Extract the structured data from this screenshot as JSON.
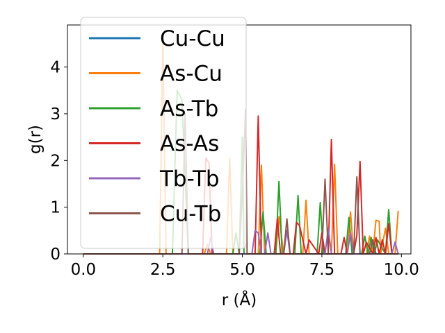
{
  "chart_data": {
    "type": "line",
    "title": "",
    "xlabel": "r (Å)",
    "ylabel": "g(r)",
    "xlim": [
      -0.5,
      10.3
    ],
    "ylim": [
      0,
      4.9
    ],
    "xticks": [
      0.0,
      2.5,
      5.0,
      7.5,
      10.0
    ],
    "xtick_labels": [
      "0.0",
      "2.5",
      "5.0",
      "7.5",
      "10.0"
    ],
    "yticks": [
      0,
      1,
      2,
      3,
      4
    ],
    "ytick_labels": [
      "0",
      "1",
      "2",
      "3",
      "4"
    ],
    "grid": false,
    "legend_position": "top-left",
    "series": [
      {
        "name": "Cu-Cu",
        "color": "#1f77b4",
        "x": [
          0,
          2.35,
          2.45,
          2.55,
          9.9
        ],
        "y": [
          0,
          0,
          0,
          0,
          0
        ]
      },
      {
        "name": "As-Cu",
        "color": "#ff7f0e",
        "x": [
          0,
          2.4,
          2.5,
          2.6,
          3.8,
          3.9,
          4.0,
          4.5,
          4.6,
          4.7,
          5.5,
          5.6,
          5.7,
          6.05,
          6.15,
          6.3,
          6.9,
          7.0,
          7.1,
          7.8,
          7.9,
          8.0,
          8.3,
          8.4,
          8.5,
          8.9,
          9.0,
          9.1,
          9.2,
          9.3,
          9.35,
          9.5,
          9.6,
          9.7,
          9.8,
          9.9
        ],
        "y": [
          0,
          0,
          4.6,
          0,
          0,
          0.2,
          0,
          0,
          2.05,
          0,
          0,
          1.9,
          0,
          0,
          0.8,
          0,
          0,
          1.15,
          0,
          0,
          1.92,
          0,
          0,
          0.9,
          0,
          0,
          0.38,
          0,
          0.72,
          0.7,
          0,
          0.55,
          0,
          0,
          0,
          0.92
        ]
      },
      {
        "name": "As-Tb",
        "color": "#2ca02c",
        "x": [
          0,
          2.8,
          2.95,
          3.1,
          3.3,
          4.7,
          4.8,
          4.9,
          5.0,
          5.05,
          5.55,
          5.65,
          5.75,
          6.05,
          6.15,
          6.25,
          6.65,
          6.75,
          6.85,
          7.35,
          7.45,
          7.55,
          8.25,
          8.35,
          8.45,
          8.75,
          8.85,
          8.95,
          9.05,
          9.15,
          9.25,
          9.5,
          9.6,
          9.7,
          9.9
        ],
        "y": [
          0,
          0,
          3.5,
          3.3,
          0,
          0,
          0.45,
          0,
          2.5,
          0,
          0,
          0.9,
          0,
          0,
          1.55,
          0,
          0,
          1.25,
          0,
          0,
          1.1,
          0,
          0,
          0.78,
          0,
          0,
          0.38,
          0,
          0.35,
          0,
          0.3,
          0,
          0.95,
          0,
          0
        ]
      },
      {
        "name": "As-As",
        "color": "#d62728",
        "x": [
          0,
          3.75,
          3.85,
          3.95,
          4.05,
          5.4,
          5.5,
          5.6,
          6.0,
          6.1,
          6.2,
          6.6,
          6.7,
          6.8,
          7.0,
          7.1,
          7.4,
          7.5,
          7.6,
          7.7,
          7.8,
          7.9,
          8.1,
          8.2,
          8.3,
          8.5,
          8.6,
          8.7,
          8.8,
          8.9,
          9.1,
          9.2,
          9.3,
          9.4,
          9.5,
          9.6,
          9.7,
          9.9
        ],
        "y": [
          0,
          0,
          2.05,
          1.95,
          0,
          0,
          2.95,
          0,
          0,
          0.75,
          0,
          0,
          0.68,
          0.6,
          0,
          0.3,
          0,
          0.45,
          0,
          0,
          2.45,
          0,
          0,
          0.35,
          0,
          0,
          0.4,
          1.98,
          0,
          0.25,
          0,
          0.35,
          0,
          0.3,
          0,
          0.65,
          0,
          0
        ]
      },
      {
        "name": "Tb-Tb",
        "color": "#9467bd",
        "x": [
          0,
          3.9,
          4.0,
          4.1,
          5.3,
          5.4,
          5.5,
          5.6,
          5.7,
          5.8,
          5.9,
          6.3,
          6.4,
          6.5,
          7.6,
          7.7,
          7.8,
          8.3,
          8.4,
          8.5,
          9.7,
          9.8,
          9.9
        ],
        "y": [
          0,
          0,
          0.35,
          0,
          0,
          0.5,
          0.45,
          0,
          0,
          0.45,
          0,
          0,
          0.5,
          0,
          0,
          0.55,
          0,
          0,
          0.45,
          0,
          0,
          0.25,
          0
        ]
      },
      {
        "name": "Cu-Tb",
        "color": "#8c564b",
        "x": [
          0,
          3.1,
          3.2,
          3.3,
          4.9,
          5.0,
          5.1,
          5.15,
          6.3,
          6.4,
          6.5,
          7.5,
          7.6,
          7.7,
          8.5,
          8.6,
          8.7,
          9.0,
          9.1,
          9.2,
          9.9
        ],
        "y": [
          0,
          0,
          3.0,
          0,
          0,
          1.3,
          3.1,
          0,
          0,
          0.75,
          0,
          0,
          1.6,
          0,
          0,
          1.65,
          0,
          0,
          0.3,
          0,
          0
        ]
      }
    ]
  }
}
